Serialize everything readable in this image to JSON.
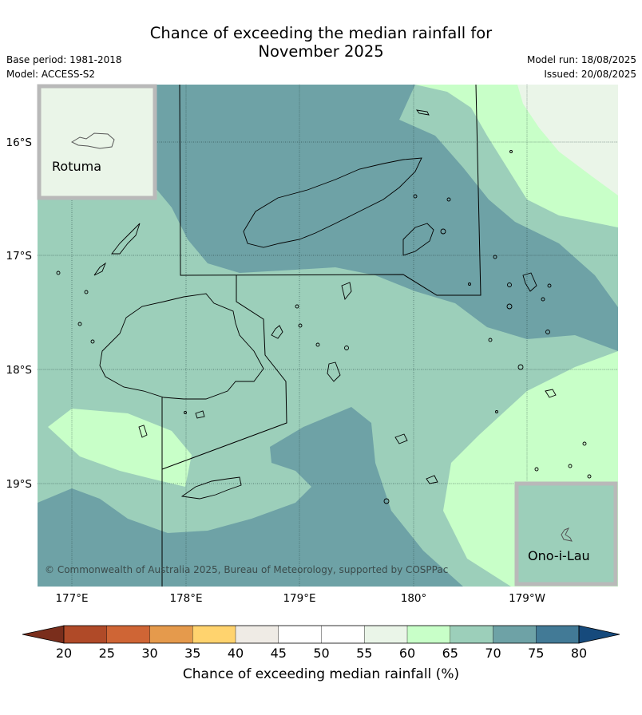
{
  "title_line1": "Chance of exceeding the median rainfall for",
  "title_line2": "November 2025",
  "base_period": "Base period: 1981-2018",
  "model": "Model: ACCESS-S2",
  "model_run": "Model run: 18/08/2025",
  "issued": "Issued: 20/08/2025",
  "lat_labels": [
    "16°S",
    "17°S",
    "18°S",
    "19°S"
  ],
  "lon_labels": [
    "177°E",
    "178°E",
    "179°E",
    "180°",
    "179°W"
  ],
  "inset_rotuma": "Rotuma",
  "inset_onoilau": "Ono-i-Lau",
  "credit": "© Commonwealth of Australia 2025, Bureau of Meteorology, supported by COSPPac",
  "colorbar": {
    "ticks": [
      "20",
      "25",
      "30",
      "35",
      "40",
      "45",
      "50",
      "55",
      "60",
      "65",
      "70",
      "75",
      "80"
    ],
    "label": "Chance of exceeding median rainfall (%)",
    "colors": {
      "below_20": "#7a2e1c",
      "20-25": "#b04a28",
      "25-30": "#cf6535",
      "30-35": "#e59a4c",
      "35-40": "#ffd36e",
      "40-45": "#efebe5",
      "45-55": "#ffffff",
      "55-60": "#eaf5e8",
      "60-65": "#c8ffc8",
      "65-70": "#9ccfba",
      "70-75": "#6ea2a6",
      "75-80": "#427a96",
      "above_80": "#164a7c"
    }
  },
  "map_colors": {
    "band_60_65": "#c8ffc8",
    "band_65_70": "#9ccfba",
    "band_70_75": "#6ea2a6",
    "band_55_60": "#eaf5e8",
    "inset_frame": "#b9b9b9"
  }
}
